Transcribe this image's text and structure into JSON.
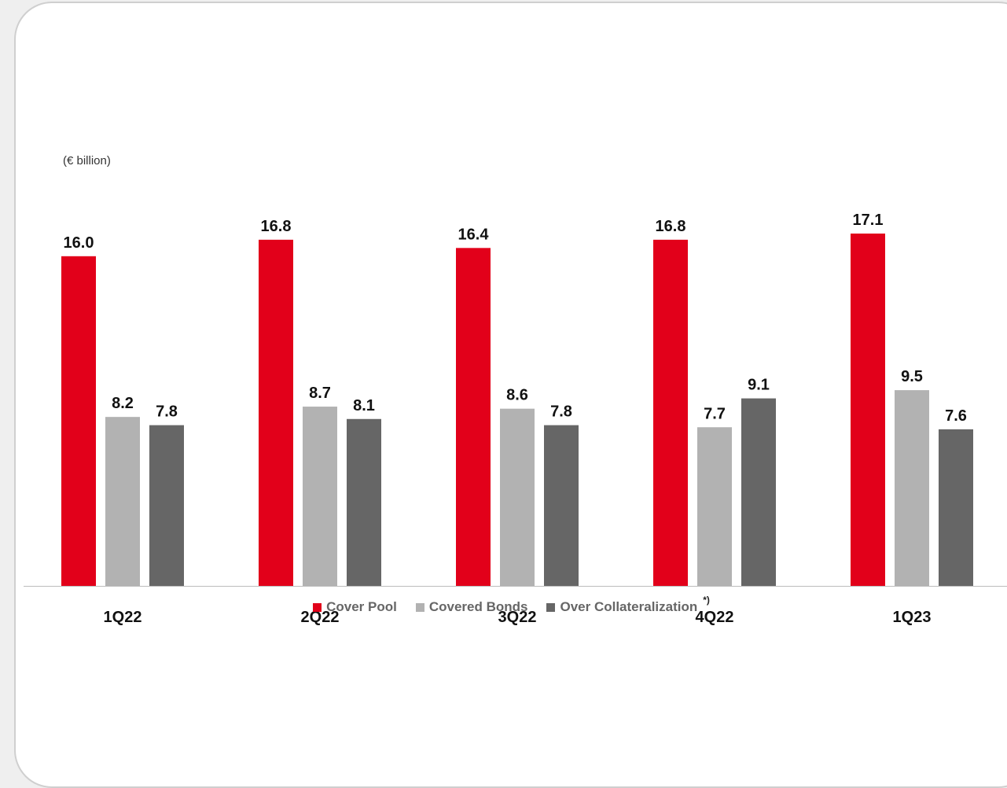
{
  "unit_label": "(€ billion)",
  "chart_data": {
    "type": "bar",
    "title": "",
    "ylabel": "",
    "xlabel": "",
    "categories": [
      "1Q22",
      "2Q22",
      "3Q22",
      "4Q22",
      "1Q23"
    ],
    "series": [
      {
        "name": "Cover Pool",
        "values": [
          16.0,
          16.8,
          16.4,
          16.8,
          17.1
        ],
        "labels": [
          "16.0",
          "16.8",
          "16.4",
          "16.8",
          "17.1"
        ],
        "color": "#e2001a"
      },
      {
        "name": "Covered Bonds",
        "values": [
          8.2,
          8.7,
          8.6,
          7.7,
          9.5
        ],
        "labels": [
          "8.2",
          "8.7",
          "8.6",
          "7.7",
          "9.5"
        ],
        "color": "#b2b2b2"
      },
      {
        "name": "Over Collateralization",
        "values": [
          7.8,
          8.1,
          7.8,
          9.1,
          7.6
        ],
        "labels": [
          "7.8",
          "8.1",
          "7.8",
          "9.1",
          "7.6"
        ],
        "color": "#666666"
      }
    ],
    "ylim": [
      0,
      17.1
    ],
    "grid": false,
    "legend_position": "bottom"
  },
  "legend": {
    "footnote_mark": "*)"
  }
}
